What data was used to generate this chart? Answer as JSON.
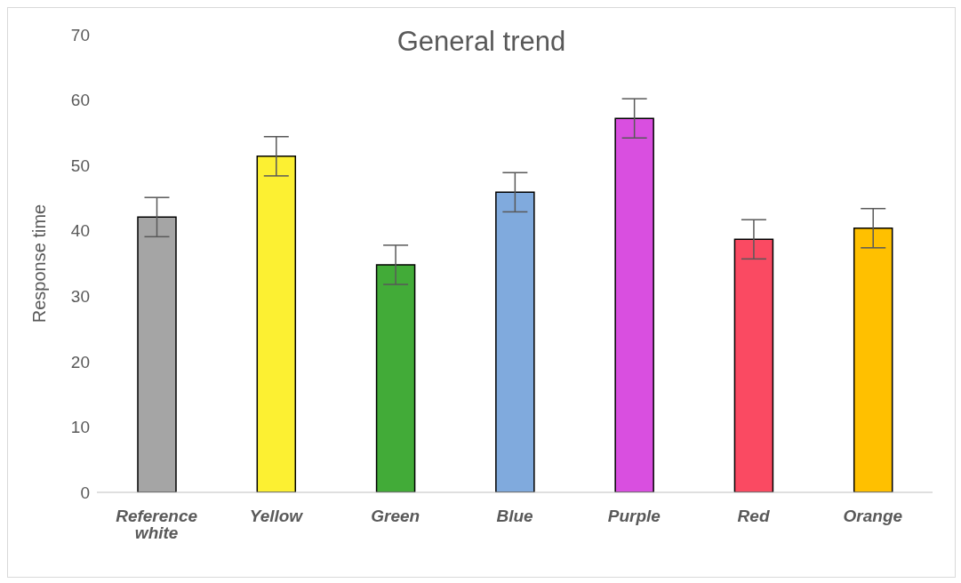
{
  "chart_data": {
    "type": "bar",
    "title": "General trend",
    "ylabel": "Response time",
    "categories": [
      "Reference white",
      "Yellow",
      "Green",
      "Blue",
      "Purple",
      "Red",
      "Orange"
    ],
    "values": [
      42.1,
      51.4,
      34.8,
      45.9,
      57.2,
      38.7,
      40.4
    ],
    "errors": [
      3,
      3,
      3,
      3,
      3,
      3,
      3
    ],
    "colors": [
      "#a5a5a5",
      "#fcf032",
      "#42ab38",
      "#80aadd",
      "#d94fe0",
      "#fa4a62",
      "#ffc000"
    ],
    "ylim": [
      0,
      70
    ],
    "yticks": [
      0,
      10,
      20,
      30,
      40,
      50,
      60,
      70
    ],
    "grid": false,
    "legend": false
  }
}
